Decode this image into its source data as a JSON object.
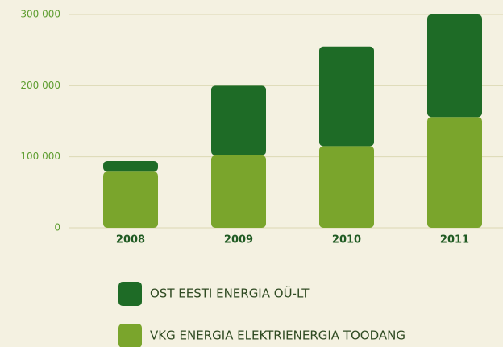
{
  "chart_data": {
    "type": "stacked-bar",
    "categories": [
      "2008",
      "2009",
      "2010",
      "2011"
    ],
    "series": [
      {
        "name": "OST EESTI ENERGIA OÜ-LT",
        "color": "#1e6b26",
        "values": [
          15000,
          98000,
          140000,
          144000
        ]
      },
      {
        "name": "VKG ENERGIA ELEKTRIENERGIA TOODANG",
        "color": "#7aa52c",
        "values": [
          79000,
          102000,
          115000,
          156000
        ]
      }
    ],
    "ylim": [
      0,
      300000
    ],
    "yticks": [
      0,
      {
        "value": 100000,
        "label": "100 000"
      },
      {
        "value": 200000,
        "label": "200 000"
      },
      {
        "value": 300000,
        "label": "300 000"
      }
    ],
    "grid": true
  }
}
